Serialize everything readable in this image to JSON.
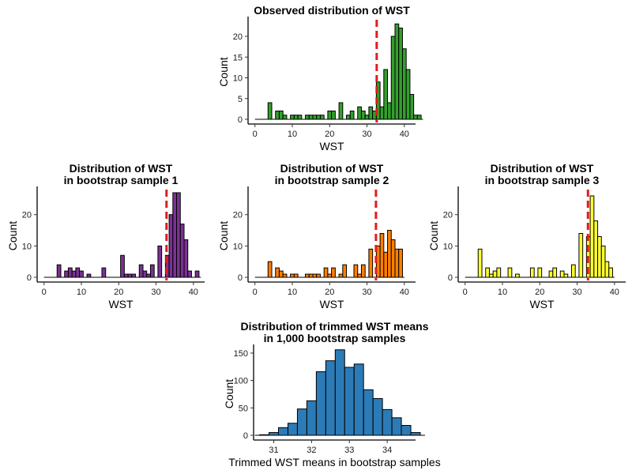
{
  "chart_data": [
    {
      "id": "observed",
      "type": "bar",
      "title": [
        "Observed distribution of WST"
      ],
      "xlabel": "WST",
      "ylabel": "Count",
      "xlim": [
        -1,
        43
      ],
      "ylim": [
        0,
        24
      ],
      "xticks": [
        0,
        10,
        20,
        30,
        40
      ],
      "yticks": [
        0,
        5,
        10,
        15,
        20
      ],
      "bin_width": 1,
      "bin_start": 1,
      "fill": "#33a02c",
      "ref_line": 32.6,
      "values": [
        0,
        0,
        0,
        4,
        0,
        2,
        2,
        1,
        0,
        1,
        1,
        1,
        0,
        1,
        1,
        1,
        1,
        1,
        0,
        2,
        2,
        0,
        4,
        0,
        1,
        2,
        0,
        3,
        2,
        1,
        3,
        2,
        9,
        3,
        12,
        4,
        20,
        23,
        22,
        17,
        12,
        6,
        1,
        1
      ]
    },
    {
      "id": "bootstrap1",
      "type": "bar",
      "title": [
        "Distribution of WST",
        "in bootstrap sample 1"
      ],
      "xlabel": "WST",
      "ylabel": "Count",
      "xlim": [
        -1,
        43
      ],
      "ylim": [
        0,
        28
      ],
      "xticks": [
        0,
        10,
        20,
        30,
        40
      ],
      "yticks": [
        0,
        10,
        20
      ],
      "bin_width": 1,
      "bin_start": 1,
      "fill": "#7b3294",
      "ref_line": 32.8,
      "values": [
        0,
        0,
        0,
        4,
        0,
        2,
        3,
        2,
        3,
        2,
        0,
        1,
        0,
        0,
        0,
        3,
        0,
        0,
        0,
        0,
        7,
        1,
        1,
        1,
        0,
        4,
        2,
        1,
        4,
        0,
        10,
        0,
        7,
        20,
        27,
        27,
        17,
        12,
        2,
        0,
        2
      ]
    },
    {
      "id": "bootstrap2",
      "type": "bar",
      "title": [
        "Distribution of WST",
        "in bootstrap sample 2"
      ],
      "xlabel": "WST",
      "ylabel": "Count",
      "xlim": [
        -1,
        43
      ],
      "ylim": [
        0,
        28
      ],
      "xticks": [
        0,
        10,
        20,
        30,
        40
      ],
      "yticks": [
        0,
        10,
        20
      ],
      "bin_width": 1,
      "bin_start": 1,
      "fill": "#ff7f00",
      "ref_line": 32.4,
      "values": [
        0,
        0,
        0,
        5,
        0,
        3,
        2,
        1,
        0,
        1,
        1,
        0,
        0,
        1,
        1,
        1,
        1,
        0,
        3,
        1,
        3,
        0,
        1,
        4,
        0,
        0,
        4,
        1,
        4,
        0,
        9,
        0,
        10,
        14,
        8,
        15,
        12,
        9,
        9
      ]
    },
    {
      "id": "bootstrap3",
      "type": "bar",
      "title": [
        "Distribution of WST",
        "in bootstrap sample 3"
      ],
      "xlabel": "WST",
      "ylabel": "Count",
      "xlim": [
        -1,
        43
      ],
      "ylim": [
        0,
        28
      ],
      "xticks": [
        0,
        10,
        20,
        30,
        40
      ],
      "yticks": [
        0,
        10,
        20
      ],
      "bin_width": 1,
      "bin_start": 1,
      "fill": "#ffff33",
      "ref_line": 32.9,
      "values": [
        0,
        0,
        0,
        9,
        0,
        3,
        1,
        2,
        3,
        0,
        0,
        3,
        0,
        1,
        0,
        0,
        0,
        3,
        0,
        3,
        0,
        0,
        2,
        3,
        0,
        2,
        1,
        0,
        4,
        0,
        14,
        0,
        13,
        26,
        18,
        13,
        10,
        5,
        3
      ]
    },
    {
      "id": "trimmed-means",
      "type": "bar",
      "title": [
        "Distribution of trimmed WST means",
        "in 1,000 bootstrap samples"
      ],
      "xlabel": "Trimmed WST means in bootstrap samples",
      "ylabel": "Count",
      "xlim": [
        30.55,
        34.75
      ],
      "ylim": [
        0,
        160
      ],
      "xticks": [
        31,
        32,
        33,
        34
      ],
      "yticks": [
        0,
        50,
        100,
        150
      ],
      "bin_width": 0.25,
      "bin_start": 30.75,
      "fill": "#2c7bb6",
      "ref_line": null,
      "values": [
        1,
        5,
        14,
        22,
        48,
        63,
        116,
        136,
        156,
        124,
        130,
        83,
        67,
        47,
        32,
        18,
        5
      ]
    }
  ]
}
